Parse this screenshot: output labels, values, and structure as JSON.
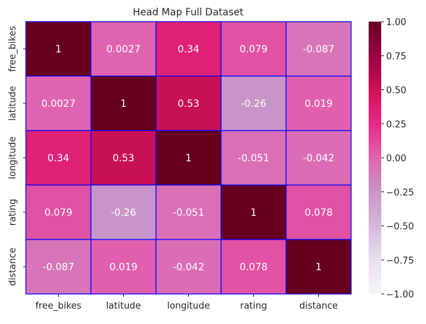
{
  "chart_data": {
    "type": "heatmap",
    "title": "Head Map Full Dataset",
    "xlabel": "",
    "ylabel": "",
    "x_categories": [
      "free_bikes",
      "latitude",
      "longitude",
      "rating",
      "distance"
    ],
    "y_categories": [
      "free_bikes",
      "latitude",
      "longitude",
      "rating",
      "distance"
    ],
    "values": [
      [
        1,
        0.0027,
        0.34,
        0.079,
        -0.087
      ],
      [
        0.0027,
        1,
        0.53,
        -0.26,
        0.019
      ],
      [
        0.34,
        0.53,
        1,
        -0.051,
        -0.042
      ],
      [
        0.079,
        -0.26,
        -0.051,
        1,
        0.078
      ],
      [
        -0.087,
        0.019,
        -0.042,
        0.078,
        1
      ]
    ],
    "cell_labels": [
      [
        "1",
        "0.0027",
        "0.34",
        "0.079",
        "-0.087"
      ],
      [
        "0.0027",
        "1",
        "0.53",
        "-0.26",
        "0.019"
      ],
      [
        "0.34",
        "0.53",
        "1",
        "-0.051",
        "-0.042"
      ],
      [
        "0.079",
        "-0.26",
        "-0.051",
        "1",
        "0.078"
      ],
      [
        "-0.087",
        "0.019",
        "-0.042",
        "0.078",
        "1"
      ]
    ],
    "colorbar": {
      "range": [
        -1,
        1
      ],
      "ticks": [
        1.0,
        0.75,
        0.5,
        0.25,
        0.0,
        -0.25,
        -0.5,
        -0.75,
        -1.0
      ],
      "tick_labels": [
        "1.00",
        "0.75",
        "0.50",
        "0.25",
        "0.00",
        "−0.25",
        "−0.50",
        "−0.75",
        "−1.00"
      ],
      "colormap": "PuRd",
      "color_stops": [
        "#f7f4f9",
        "#e7e1ef",
        "#d4b9da",
        "#c994c7",
        "#df65b0",
        "#e7298a",
        "#ce1256",
        "#980043",
        "#67001f"
      ]
    },
    "cell_border_color": "#0000ff",
    "grid": false
  }
}
